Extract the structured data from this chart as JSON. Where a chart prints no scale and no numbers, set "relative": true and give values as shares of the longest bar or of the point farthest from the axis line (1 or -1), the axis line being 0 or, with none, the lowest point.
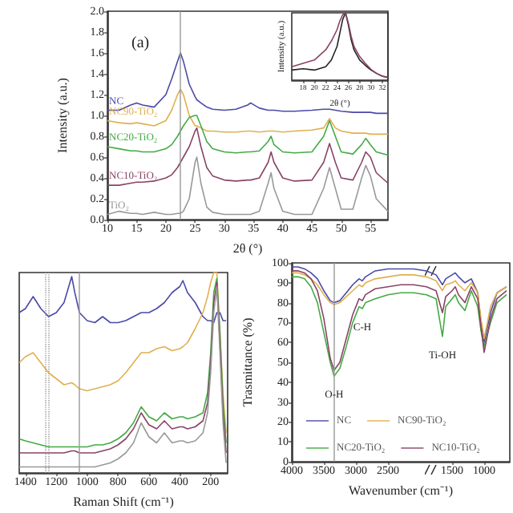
{
  "chart_data": [
    {
      "type": "line",
      "title": "(a)",
      "xlabel": "2θ (°)",
      "ylabel": "Intensity (a.u.)",
      "xlim": [
        10,
        58
      ],
      "xticks": [
        10,
        15,
        20,
        25,
        30,
        35,
        40,
        45,
        50,
        55
      ],
      "ylim": [
        0,
        2.0
      ],
      "yticks": [
        {
          "value": 0,
          "label": "0.0"
        },
        0.2,
        0.4,
        0.6,
        0.8,
        {
          "value": 1,
          "label": "1.0"
        },
        1.2,
        1.4,
        1.6,
        1.8,
        {
          "value": 2,
          "label": "2.0"
        }
      ],
      "legend": false,
      "x": [
        10,
        12,
        14,
        15,
        16,
        18,
        20,
        21,
        22,
        22.5,
        23,
        24,
        25,
        25.3,
        26,
        27,
        28,
        30,
        32,
        34,
        34.5,
        36,
        37.5,
        38,
        38.5,
        40,
        42,
        45,
        47,
        48,
        49,
        50,
        52,
        53.5,
        54.2,
        55,
        56,
        58
      ],
      "ref_lines": [
        {
          "axis": "x",
          "value": 22.5,
          "color": "#999999",
          "line_style": "solid"
        }
      ],
      "series": [
        {
          "name": "NC",
          "color": "#4a4aa8",
          "values": [
            1.05,
            1.05,
            1.1,
            1.12,
            1.1,
            1.08,
            1.2,
            1.35,
            1.52,
            1.6,
            1.52,
            1.3,
            1.18,
            1.15,
            1.12,
            1.08,
            1.06,
            1.05,
            1.06,
            1.1,
            1.12,
            1.07,
            1.05,
            1.05,
            1.05,
            1.04,
            1.04,
            1.05,
            1.06,
            1.06,
            1.05,
            1.04,
            1.03,
            1.03,
            1.03,
            1.03,
            1.02,
            1.02
          ]
        },
        {
          "name": "NC90-TiO₂",
          "color": "#e0b050",
          "values": [
            0.95,
            0.93,
            0.92,
            0.93,
            0.92,
            0.9,
            0.95,
            1.05,
            1.2,
            1.25,
            1.2,
            1.0,
            0.9,
            0.9,
            0.88,
            0.85,
            0.85,
            0.84,
            0.84,
            0.85,
            0.85,
            0.84,
            0.85,
            0.85,
            0.85,
            0.84,
            0.85,
            0.86,
            0.88,
            0.97,
            0.88,
            0.85,
            0.83,
            0.83,
            0.83,
            0.82,
            0.82,
            0.82
          ]
        },
        {
          "name": "NC20-TiO₂",
          "color": "#44aa44",
          "values": [
            0.7,
            0.68,
            0.66,
            0.66,
            0.65,
            0.65,
            0.68,
            0.72,
            0.8,
            0.85,
            0.9,
            0.98,
            1.0,
            1.0,
            0.9,
            0.75,
            0.68,
            0.65,
            0.64,
            0.65,
            0.65,
            0.66,
            0.75,
            0.8,
            0.72,
            0.65,
            0.64,
            0.65,
            0.8,
            0.95,
            0.8,
            0.65,
            0.63,
            0.72,
            0.78,
            0.72,
            0.65,
            0.62
          ]
        },
        {
          "name": "NC10-TiO₂",
          "color": "#884466",
          "values": [
            0.33,
            0.33,
            0.35,
            0.36,
            0.36,
            0.37,
            0.4,
            0.43,
            0.5,
            0.55,
            0.6,
            0.7,
            0.85,
            0.88,
            0.7,
            0.5,
            0.42,
            0.38,
            0.37,
            0.38,
            0.38,
            0.4,
            0.55,
            0.65,
            0.55,
            0.4,
            0.37,
            0.38,
            0.55,
            0.73,
            0.55,
            0.4,
            0.38,
            0.55,
            0.65,
            0.6,
            0.45,
            0.35
          ]
        },
        {
          "name": "TiO₂",
          "color": "#999999",
          "values": [
            0.05,
            0.08,
            0.06,
            0.06,
            0.05,
            0.07,
            0.05,
            0.05,
            0.06,
            0.06,
            0.08,
            0.2,
            0.55,
            0.6,
            0.35,
            0.12,
            0.07,
            0.05,
            0.05,
            0.05,
            0.05,
            0.08,
            0.35,
            0.45,
            0.3,
            0.08,
            0.05,
            0.05,
            0.3,
            0.5,
            0.3,
            0.1,
            0.1,
            0.4,
            0.52,
            0.42,
            0.2,
            0.08
          ]
        }
      ]
    },
    {
      "type": "line",
      "xlabel": "2θ (°)",
      "ylabel": "Intensity (a.u.)",
      "relative": true,
      "tick_labels": "x",
      "xlim": [
        16,
        33
      ],
      "xticks": [
        18,
        20,
        22,
        24,
        26,
        28,
        30,
        32
      ],
      "x": [
        16,
        18,
        20,
        22,
        23,
        24,
        24.5,
        25,
        25.5,
        26,
        26.5,
        27,
        28,
        29,
        30,
        31,
        32,
        33
      ],
      "series": [
        {
          "color": "#222222",
          "values": [
            0.15,
            0.17,
            0.15,
            0.2,
            0.3,
            0.5,
            0.7,
            0.9,
            1.0,
            0.82,
            0.6,
            0.45,
            0.3,
            0.22,
            0.15,
            0.1,
            0.06,
            0.04
          ]
        },
        {
          "color": "#884466",
          "values": [
            0.2,
            0.25,
            0.3,
            0.45,
            0.58,
            0.75,
            0.88,
            0.97,
            1.0,
            0.85,
            0.65,
            0.5,
            0.35,
            0.25,
            0.16,
            0.1,
            0.06,
            0.04
          ]
        }
      ]
    },
    {
      "type": "line",
      "xlabel": "Raman Shift (cm⁻¹)",
      "relative": true,
      "tick_labels": "x",
      "xlim": [
        1440,
        90
      ],
      "xticks": [
        1400,
        1200,
        1000,
        800,
        600,
        400,
        200
      ],
      "x": [
        1440,
        1400,
        1350,
        1300,
        1250,
        1200,
        1150,
        1100,
        1080,
        1050,
        1000,
        950,
        900,
        850,
        800,
        750,
        700,
        650,
        600,
        550,
        500,
        450,
        400,
        380,
        350,
        300,
        250,
        220,
        200,
        180,
        160,
        140,
        120,
        100
      ],
      "ref_lines": [
        {
          "axis": "x",
          "value": 1270,
          "color": "#999999",
          "line_style": "dotted"
        },
        {
          "axis": "x",
          "value": 1250,
          "color": "#999999",
          "line_style": "dotted"
        },
        {
          "axis": "x",
          "value": 1050,
          "color": "#999999",
          "line_style": "solid"
        }
      ],
      "series": [
        {
          "color": "#4a4aa8",
          "values": [
            0.8,
            0.82,
            0.88,
            0.82,
            0.78,
            0.8,
            0.85,
            0.98,
            0.9,
            0.8,
            0.76,
            0.75,
            0.78,
            0.75,
            0.75,
            0.76,
            0.78,
            0.8,
            0.8,
            0.82,
            0.85,
            0.9,
            0.93,
            0.96,
            0.9,
            0.85,
            0.78,
            0.76,
            0.76,
            0.75,
            0.8,
            0.8,
            0.76,
            0.76
          ]
        },
        {
          "color": "#e0b050",
          "values": [
            0.55,
            0.58,
            0.6,
            0.55,
            0.5,
            0.47,
            0.44,
            0.45,
            0.44,
            0.42,
            0.41,
            0.42,
            0.43,
            0.44,
            0.46,
            0.5,
            0.55,
            0.6,
            0.6,
            0.62,
            0.63,
            0.61,
            0.62,
            0.63,
            0.65,
            0.72,
            0.8,
            0.88,
            0.95,
            1.0,
            1.0,
            0.7,
            0.4,
            0.2
          ]
        },
        {
          "color": "#44aa44",
          "values": [
            0.17,
            0.16,
            0.15,
            0.14,
            0.13,
            0.13,
            0.13,
            0.13,
            0.13,
            0.13,
            0.13,
            0.14,
            0.14,
            0.15,
            0.17,
            0.2,
            0.25,
            0.33,
            0.28,
            0.26,
            0.3,
            0.27,
            0.28,
            0.28,
            0.27,
            0.28,
            0.3,
            0.4,
            0.6,
            0.9,
            0.97,
            0.7,
            0.35,
            0.15
          ]
        },
        {
          "color": "#884466",
          "values": [
            0.1,
            0.1,
            0.1,
            0.1,
            0.1,
            0.1,
            0.1,
            0.11,
            0.11,
            0.1,
            0.1,
            0.1,
            0.11,
            0.12,
            0.14,
            0.17,
            0.22,
            0.3,
            0.24,
            0.22,
            0.26,
            0.22,
            0.23,
            0.23,
            0.22,
            0.23,
            0.26,
            0.35,
            0.55,
            0.85,
            0.95,
            0.65,
            0.3,
            0.1
          ]
        },
        {
          "color": "#999999",
          "values": [
            0.03,
            0.03,
            0.03,
            0.03,
            0.03,
            0.03,
            0.03,
            0.03,
            0.03,
            0.03,
            0.03,
            0.03,
            0.04,
            0.05,
            0.07,
            0.1,
            0.15,
            0.25,
            0.18,
            0.15,
            0.2,
            0.15,
            0.16,
            0.16,
            0.15,
            0.16,
            0.2,
            0.3,
            0.5,
            0.8,
            0.93,
            0.6,
            0.25,
            0.05
          ]
        }
      ]
    },
    {
      "type": "line",
      "xlabel": "Wavenumber (cm⁻¹)",
      "ylabel": "Trasmittance (%)",
      "xlim": [
        4000,
        600
      ],
      "xticks": [
        4000,
        3500,
        3000,
        2500,
        1500,
        1000
      ],
      "ylim": [
        0,
        100
      ],
      "yticks": [
        0,
        10,
        20,
        30,
        40,
        50,
        60,
        70,
        80,
        90,
        100
      ],
      "legend": "bottom left",
      "x": [
        4000,
        3900,
        3800,
        3700,
        3600,
        3500,
        3400,
        3340,
        3250,
        3150,
        3050,
        2950,
        2900,
        2850,
        2700,
        2500,
        2300,
        2100,
        1900,
        1750,
        1650,
        1600,
        1500,
        1450,
        1400,
        1300,
        1200,
        1100,
        1050,
        1000,
        900,
        800,
        650
      ],
      "ref_lines": [
        {
          "axis": "x",
          "value": 3340,
          "color": "#999999",
          "line_style": "solid"
        }
      ],
      "annotations": [
        {
          "text": "O-H",
          "x": 3340,
          "y": 43
        },
        {
          "text": "C-H",
          "x": 2900,
          "y": 77
        },
        {
          "text": "Ti-OH",
          "x": 1650,
          "y": 63
        }
      ],
      "series": [
        {
          "name": "NC",
          "color": "#4a4aa8",
          "values": [
            98,
            98,
            97,
            95,
            92,
            86,
            81,
            80,
            81,
            85,
            89,
            92,
            91,
            93,
            96,
            97,
            97,
            97,
            96,
            94,
            89,
            92,
            94,
            95,
            93,
            90,
            92,
            85,
            70,
            60,
            75,
            85,
            88
          ]
        },
        {
          "name": "NC90-TiO₂",
          "color": "#e0b050",
          "values": [
            95,
            95,
            94,
            92,
            89,
            84,
            80,
            79,
            80,
            83,
            86,
            89,
            88,
            90,
            92,
            93,
            94,
            94,
            93,
            91,
            86,
            89,
            90,
            91,
            89,
            86,
            90,
            85,
            72,
            62,
            78,
            85,
            88
          ]
        },
        {
          "name": "NC20-TiO₂",
          "color": "#44aa44",
          "values": [
            93,
            93,
            92,
            88,
            80,
            65,
            50,
            43,
            47,
            58,
            70,
            78,
            77,
            80,
            82,
            84,
            85,
            85,
            84,
            82,
            63,
            78,
            82,
            84,
            80,
            76,
            86,
            78,
            66,
            58,
            70,
            80,
            84
          ]
        },
        {
          "name": "NC10-TiO₂",
          "color": "#884466",
          "values": [
            96,
            96,
            95,
            92,
            86,
            72,
            52,
            46,
            50,
            62,
            74,
            82,
            81,
            84,
            87,
            88,
            89,
            89,
            88,
            86,
            75,
            83,
            86,
            88,
            84,
            80,
            88,
            82,
            68,
            55,
            72,
            82,
            86
          ]
        }
      ]
    }
  ]
}
